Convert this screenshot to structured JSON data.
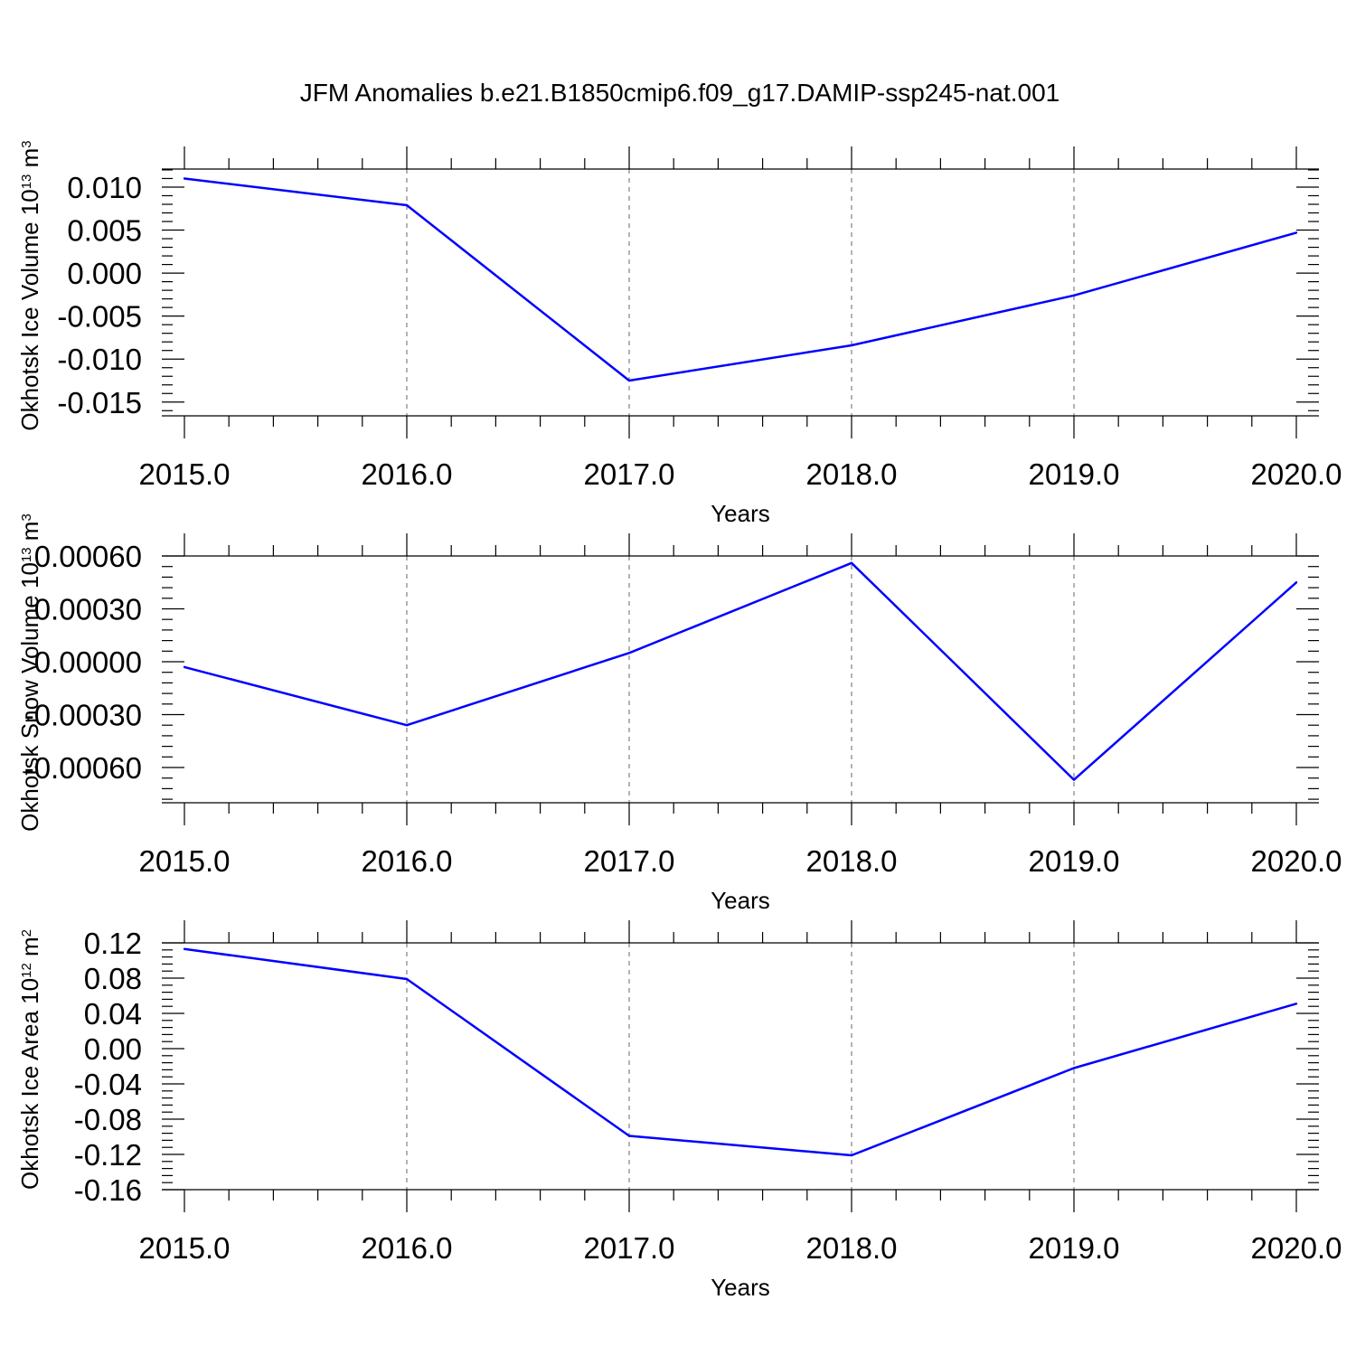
{
  "title": "JFM Anomalies b.e21.B1850cmip6.f09_g17.DAMIP-ssp245-nat.001",
  "colors": {
    "line": "#0000ff",
    "axis": "#000000",
    "grid": "#808080"
  },
  "chart_data": [
    {
      "type": "line",
      "ylabel": {
        "text": "Okhotsk Ice Volume 10",
        "exp": "13",
        "unit": " m",
        "unit_exp": "3"
      },
      "xlabel": "Years",
      "x": [
        2015,
        2016,
        2017,
        2018,
        2019,
        2020
      ],
      "y": [
        0.011,
        0.0079,
        -0.0125,
        -0.0084,
        -0.0026,
        0.0047
      ],
      "ylim": [
        -0.0166,
        0.0121
      ],
      "xlim": [
        2015,
        2020
      ],
      "yticks": [
        -0.015,
        -0.01,
        -0.005,
        0.0,
        0.005,
        0.01
      ],
      "ytick_labels": [
        "-0.015",
        "-0.010",
        "-0.005",
        "0.000",
        "0.005",
        "0.010"
      ],
      "xticks": [
        2015,
        2016,
        2017,
        2018,
        2019,
        2020
      ],
      "xtick_labels": [
        "2015.0",
        "2016.0",
        "2017.0",
        "2018.0",
        "2019.0",
        "2020.0"
      ],
      "grid": "vertical dashed"
    },
    {
      "type": "line",
      "ylabel": {
        "text": "Okhotsk Snow Volume 10",
        "exp": "13",
        "unit": " m",
        "unit_exp": "3"
      },
      "xlabel": "Years",
      "x": [
        2015,
        2016,
        2017,
        2018,
        2019,
        2020
      ],
      "y": [
        -3e-05,
        -0.00036,
        5e-05,
        0.00056,
        -0.00067,
        0.00045
      ],
      "ylim": [
        -0.0008,
        0.0006
      ],
      "xlim": [
        2015,
        2020
      ],
      "yticks": [
        -0.0006,
        -0.0003,
        0.0,
        0.0003,
        0.0006
      ],
      "ytick_labels": [
        "-0.00060",
        "-0.00030",
        "0.00000",
        "0.00030",
        "0.00060"
      ],
      "xticks": [
        2015,
        2016,
        2017,
        2018,
        2019,
        2020
      ],
      "xtick_labels": [
        "2015.0",
        "2016.0",
        "2017.0",
        "2018.0",
        "2019.0",
        "2020.0"
      ],
      "grid": "vertical dashed"
    },
    {
      "type": "line",
      "ylabel": {
        "text": "Okhotsk Ice Area 10",
        "exp": "12",
        "unit": " m",
        "unit_exp": "2"
      },
      "xlabel": "Years",
      "x": [
        2015,
        2016,
        2017,
        2018,
        2019,
        2020
      ],
      "y": [
        0.113,
        0.079,
        -0.099,
        -0.121,
        -0.022,
        0.051
      ],
      "ylim": [
        -0.16,
        0.12
      ],
      "xlim": [
        2015,
        2020
      ],
      "yticks": [
        -0.16,
        -0.12,
        -0.08,
        -0.04,
        0.0,
        0.04,
        0.08,
        0.12
      ],
      "ytick_labels": [
        "-0.16",
        "-0.12",
        "-0.08",
        "-0.04",
        "0.00",
        "0.04",
        "0.08",
        "0.12"
      ],
      "xticks": [
        2015,
        2016,
        2017,
        2018,
        2019,
        2020
      ],
      "xtick_labels": [
        "2015.0",
        "2016.0",
        "2017.0",
        "2018.0",
        "2019.0",
        "2020.0"
      ],
      "grid": "vertical dashed"
    }
  ]
}
